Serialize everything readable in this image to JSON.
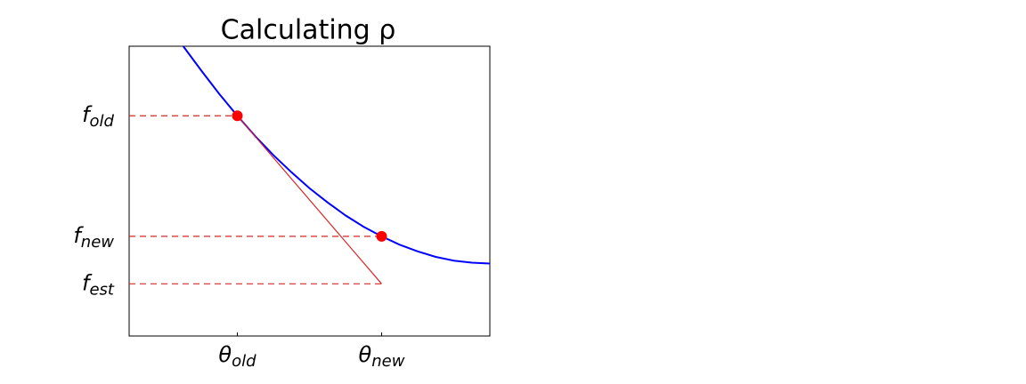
{
  "chart_data": {
    "type": "line",
    "title": "Calculating ρ",
    "xlim": [
      0,
      5
    ],
    "ylim": [
      0,
      10
    ],
    "xticks": [
      {
        "value": 1.5,
        "label": "θ",
        "sub": "old"
      },
      {
        "value": 3.5,
        "label": "θ",
        "sub": "new"
      }
    ],
    "yticks": [
      {
        "value": 7.6,
        "label": "f",
        "sub": "old"
      },
      {
        "value": 3.44,
        "label": "f",
        "sub": "new"
      },
      {
        "value": 1.8,
        "label": "f",
        "sub": "est"
      }
    ],
    "series": [
      {
        "kind": "curve",
        "color": "#0000ff",
        "x": [
          0.75,
          1,
          1.25,
          1.5,
          1.75,
          2,
          2.25,
          2.5,
          2.75,
          3,
          3.25,
          3.5,
          3.75,
          4,
          4.25,
          4.5,
          4.75,
          5
        ],
        "values": [
          10.0,
          9.16,
          8.35,
          7.6,
          6.89,
          6.24,
          5.65,
          5.1,
          4.61,
          4.16,
          3.77,
          3.44,
          3.15,
          2.92,
          2.73,
          2.6,
          2.53,
          2.5
        ]
      },
      {
        "kind": "tangent",
        "color": "#d62728",
        "x": [
          1.5,
          3.5
        ],
        "values": [
          7.6,
          1.8
        ]
      },
      {
        "kind": "points",
        "color": "#ff0000",
        "x": [
          1.5,
          3.5
        ],
        "values": [
          7.6,
          3.44
        ]
      }
    ]
  }
}
